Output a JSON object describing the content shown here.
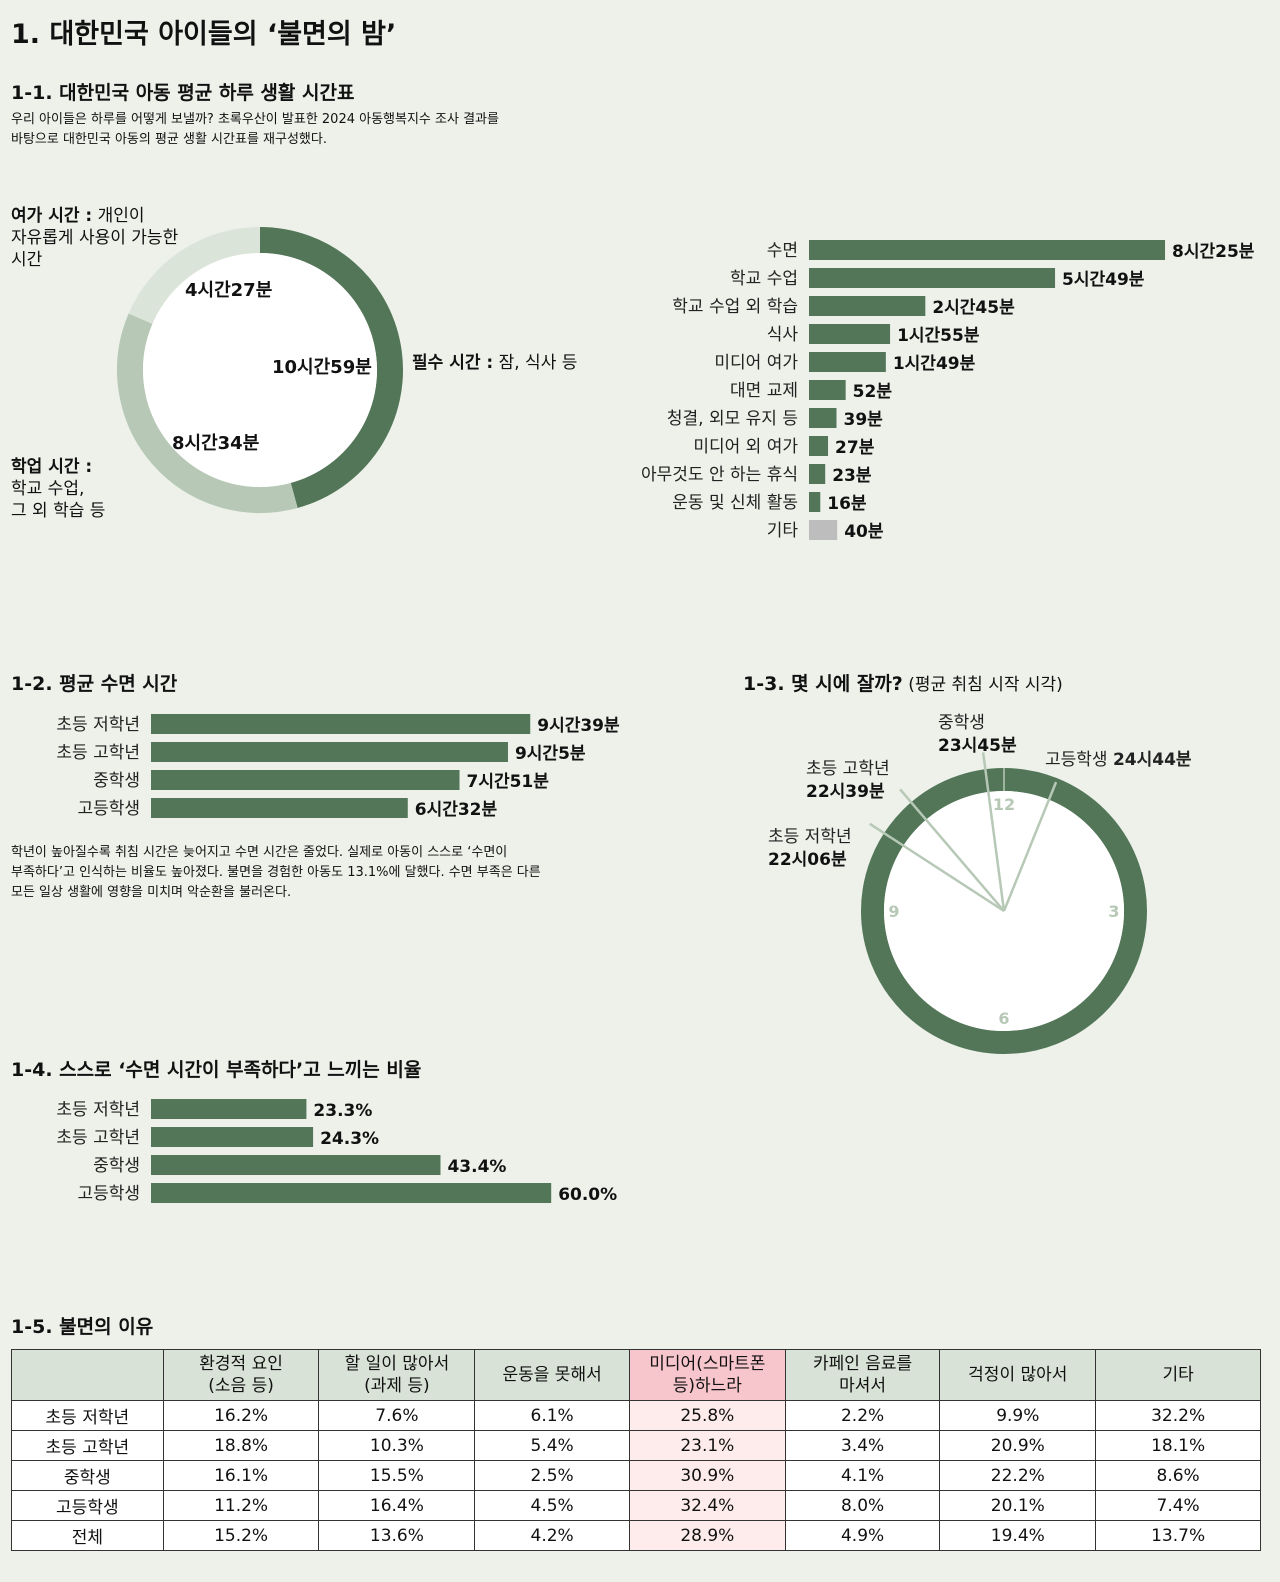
{
  "page_title": "1. 대한민국 아이들의 ‘불면의 밤’",
  "colors": {
    "dark_green": "#527657",
    "mid_green": "#b7c9b6",
    "light_green": "#dbe4d8",
    "gray": "#bdbdbd",
    "highlight_pink": "#f7c6cc"
  },
  "s1_1": {
    "heading": "1-1. 대한민국 아동 평균 하루 생활 시간표",
    "desc": "우리 아이들은 하루를 어떻게 보낼까? 초록우산이 발표한 2024 아동행복지수 조사 결과를\n바탕으로 대한민국 아동의 평균 생활 시간표를 재구성했다.",
    "leisure_label_bold": "여가 시간 :",
    "leisure_label_rest": " 개인이\n자유롭게 사용이 가능한\n시간",
    "essential_label_bold": "필수 시간 :",
    "essential_label_rest": " 잠, 식사 등",
    "study_label_bold": "학업 시간 :",
    "study_label_rest": "\n학교 수업,\n그 외 학습 등"
  },
  "s1_2": {
    "heading": "1-2. 평균 수면 시간",
    "desc": "학년이 높아질수록 취침 시간은 늦어지고 수면 시간은 줄었다. 실제로 아동이 스스로 ‘수면이\n부족하다’고 인식하는 비율도 높아졌다. 불면을 경험한 아동도 13.1%에 달했다. 수면 부족은 다른\n모든 일상 생활에 영향을 미치며 악순환을 불러온다."
  },
  "s1_3": {
    "heading": "1-3. 몇 시에 잘까?",
    "heading_sub": " (평균 취침 시작 시각)"
  },
  "s1_4": {
    "heading": "1-4. 스스로 ‘수면 시간이 부족하다’고 느끼는 비율"
  },
  "s1_5": {
    "heading": "1-5. 불면의 이유"
  },
  "chart_data": [
    {
      "id": "daily-donut",
      "type": "pie",
      "slices": [
        {
          "name": "필수 시간",
          "value_minutes": 659,
          "label": "10시간59분"
        },
        {
          "name": "학업 시간",
          "value_minutes": 514,
          "label": "8시간34분"
        },
        {
          "name": "여가 시간",
          "value_minutes": 267,
          "label": "4시간27분"
        }
      ]
    },
    {
      "id": "daily-bars",
      "type": "bar",
      "orientation": "horizontal",
      "categories": [
        "수면",
        "학교 수업",
        "학교 수업 외 학습",
        "식사",
        "미디어 여가",
        "대면 교제",
        "청결, 외모 유지 등",
        "미디어 외 여가",
        "아무것도 안 하는 휴식",
        "운동 및 신체 활동",
        "기타"
      ],
      "values_minutes": [
        505,
        349,
        165,
        115,
        109,
        52,
        39,
        27,
        23,
        16,
        40
      ],
      "value_labels": [
        "8시간25분",
        "5시간49분",
        "2시간45분",
        "1시간55분",
        "1시간49분",
        "52분",
        "39분",
        "27분",
        "23분",
        "16분",
        "40분"
      ]
    },
    {
      "id": "sleep-bars",
      "type": "bar",
      "orientation": "horizontal",
      "categories": [
        "초등 저학년",
        "초등 고학년",
        "중학생",
        "고등학생"
      ],
      "values_minutes": [
        579,
        545,
        471,
        392
      ],
      "value_labels": [
        "9시간39분",
        "9시간5분",
        "7시간51분",
        "6시간32분"
      ]
    },
    {
      "id": "bedtime-clock",
      "type": "other",
      "clock_numbers": [
        "12",
        "3",
        "6",
        "9"
      ],
      "series": [
        {
          "name": "초등 저학년",
          "time_label": "22시06분",
          "hour": 22.1
        },
        {
          "name": "초등 고학년",
          "time_label": "22시39분",
          "hour": 22.65
        },
        {
          "name": "중학생",
          "time_label": "23시45분",
          "hour": 23.75
        },
        {
          "name": "고등학생",
          "time_label": "24시44분",
          "hour": 24.733
        }
      ]
    },
    {
      "id": "insufficient-bars",
      "type": "bar",
      "orientation": "horizontal",
      "categories": [
        "초등 저학년",
        "초등 고학년",
        "중학생",
        "고등학생"
      ],
      "values": [
        23.3,
        24.3,
        43.4,
        60.0
      ],
      "value_labels": [
        "23.3%",
        "24.3%",
        "43.4%",
        "60.0%"
      ]
    },
    {
      "id": "reasons-table",
      "type": "table",
      "columns": [
        "",
        "환경적 요인\n(소음 등)",
        "할 일이 많아서\n(과제 등)",
        "운동을 못해서",
        "미디어(스마트폰\n등)하느라",
        "카페인 음료를\n마셔서",
        "걱정이 많아서",
        "기타"
      ],
      "highlight_column": 4,
      "rows": [
        [
          "초등 저학년",
          "16.2%",
          "7.6%",
          "6.1%",
          "25.8%",
          "2.2%",
          "9.9%",
          "32.2%"
        ],
        [
          "초등 고학년",
          "18.8%",
          "10.3%",
          "5.4%",
          "23.1%",
          "3.4%",
          "20.9%",
          "18.1%"
        ],
        [
          "중학생",
          "16.1%",
          "15.5%",
          "2.5%",
          "30.9%",
          "4.1%",
          "22.2%",
          "8.6%"
        ],
        [
          "고등학생",
          "11.2%",
          "16.4%",
          "4.5%",
          "32.4%",
          "8.0%",
          "20.1%",
          "7.4%"
        ],
        [
          "전체",
          "15.2%",
          "13.6%",
          "4.2%",
          "28.9%",
          "4.9%",
          "19.4%",
          "13.7%"
        ]
      ]
    }
  ]
}
